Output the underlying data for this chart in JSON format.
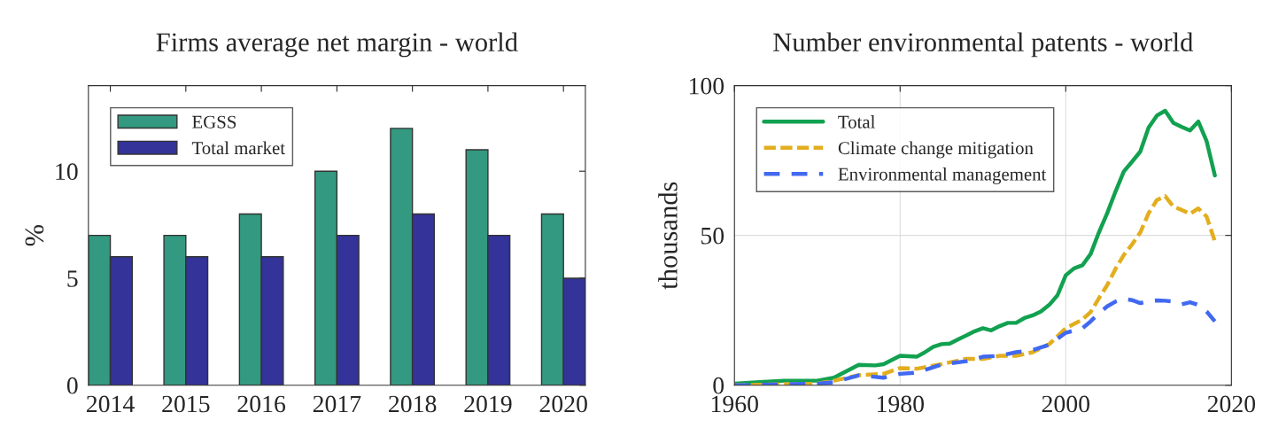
{
  "chart_data": [
    {
      "type": "bar",
      "title": "Firms average net margin - world",
      "ylabel": "%",
      "categories": [
        "2014",
        "2015",
        "2016",
        "2017",
        "2018",
        "2019",
        "2020"
      ],
      "ylim": [
        0,
        14
      ],
      "yticks": [
        0,
        5,
        10
      ],
      "grid": false,
      "legend": "top left",
      "series": [
        {
          "name": "EGSS",
          "color": "#339980",
          "values": [
            7,
            7,
            8,
            10,
            12,
            11,
            8
          ]
        },
        {
          "name": "Total market",
          "color": "#333399",
          "values": [
            6,
            6,
            6,
            7,
            8,
            7,
            5
          ]
        }
      ]
    },
    {
      "type": "line",
      "title": "Number environmental patents - world",
      "ylabel": "thousands",
      "xlim": [
        1960,
        2020
      ],
      "xticks": [
        1960,
        1980,
        2000,
        2020
      ],
      "ylim": [
        0,
        100
      ],
      "yticks": [
        0,
        50,
        100
      ],
      "grid": true,
      "legend": "top left",
      "series": [
        {
          "name": "Total",
          "color": "#12a150",
          "line_style": "solid",
          "x": [
            1960,
            1963,
            1966,
            1970,
            1972,
            1975,
            1977,
            1978,
            1980,
            1982,
            1983,
            1984,
            1985,
            1986,
            1987,
            1988,
            1989,
            1990,
            1991,
            1992,
            1993,
            1994,
            1995,
            1996,
            1997,
            1998,
            1999,
            2000,
            2001,
            2002,
            2003,
            2004,
            2005,
            2006,
            2007,
            2008,
            2009,
            2010,
            2011,
            2012,
            2013,
            2014,
            2015,
            2016,
            2017,
            2018
          ],
          "values": [
            0.5,
            1,
            1.5,
            1.5,
            2.5,
            6.8,
            6.6,
            7,
            9.8,
            9.5,
            11,
            12.8,
            13.7,
            13.9,
            15.3,
            16.6,
            18,
            19,
            18.3,
            19.7,
            20.8,
            20.8,
            22.4,
            23.3,
            24.6,
            26.8,
            30,
            36.7,
            39,
            40,
            43.8,
            51,
            57.4,
            64.6,
            71.3,
            74.6,
            78,
            86,
            90,
            91.6,
            87.5,
            86.2,
            85,
            88,
            81.5,
            70
          ]
        },
        {
          "name": "Climate change mitigation",
          "color": "#e3ae1e",
          "line_style": "dashed",
          "x": [
            1960,
            1970,
            1972,
            1975,
            1978,
            1980,
            1982,
            1985,
            1988,
            1990,
            1992,
            1994,
            1996,
            1998,
            2000,
            2002,
            2003,
            2004,
            2005,
            2006,
            2007,
            2008,
            2009,
            2010,
            2011,
            2012,
            2013,
            2014,
            2015,
            2016,
            2017,
            2018
          ],
          "values": [
            0,
            0.5,
            1.5,
            3.3,
            3.8,
            5.7,
            5.5,
            7,
            8.8,
            8.8,
            9.8,
            9.8,
            11,
            13.7,
            19,
            21.9,
            24.4,
            29,
            33.4,
            38.8,
            43.4,
            47,
            51,
            57.4,
            61.8,
            63.1,
            59.6,
            58.5,
            57.2,
            59,
            56.3,
            48
          ]
        },
        {
          "name": "Environmental management",
          "color": "#4169f0",
          "line_style": "dashed",
          "x": [
            1960,
            1970,
            1972,
            1975,
            1978,
            1980,
            1982,
            1985,
            1988,
            1990,
            1992,
            1994,
            1996,
            1998,
            2000,
            2002,
            2003,
            2004,
            2005,
            2006,
            2007,
            2008,
            2009,
            2010,
            2011,
            2012,
            2013,
            2014,
            2015,
            2016,
            2017,
            2018
          ],
          "values": [
            0,
            0.5,
            1,
            3.3,
            2.5,
            3.8,
            4.2,
            6.9,
            8,
            9.5,
            9.8,
            11,
            11.7,
            13.5,
            17.5,
            19,
            21.3,
            24,
            26.3,
            27.9,
            28.8,
            28.4,
            27.4,
            28.1,
            28.3,
            28.2,
            27.9,
            27,
            27.7,
            26.8,
            24.6,
            21.3
          ]
        }
      ]
    }
  ]
}
